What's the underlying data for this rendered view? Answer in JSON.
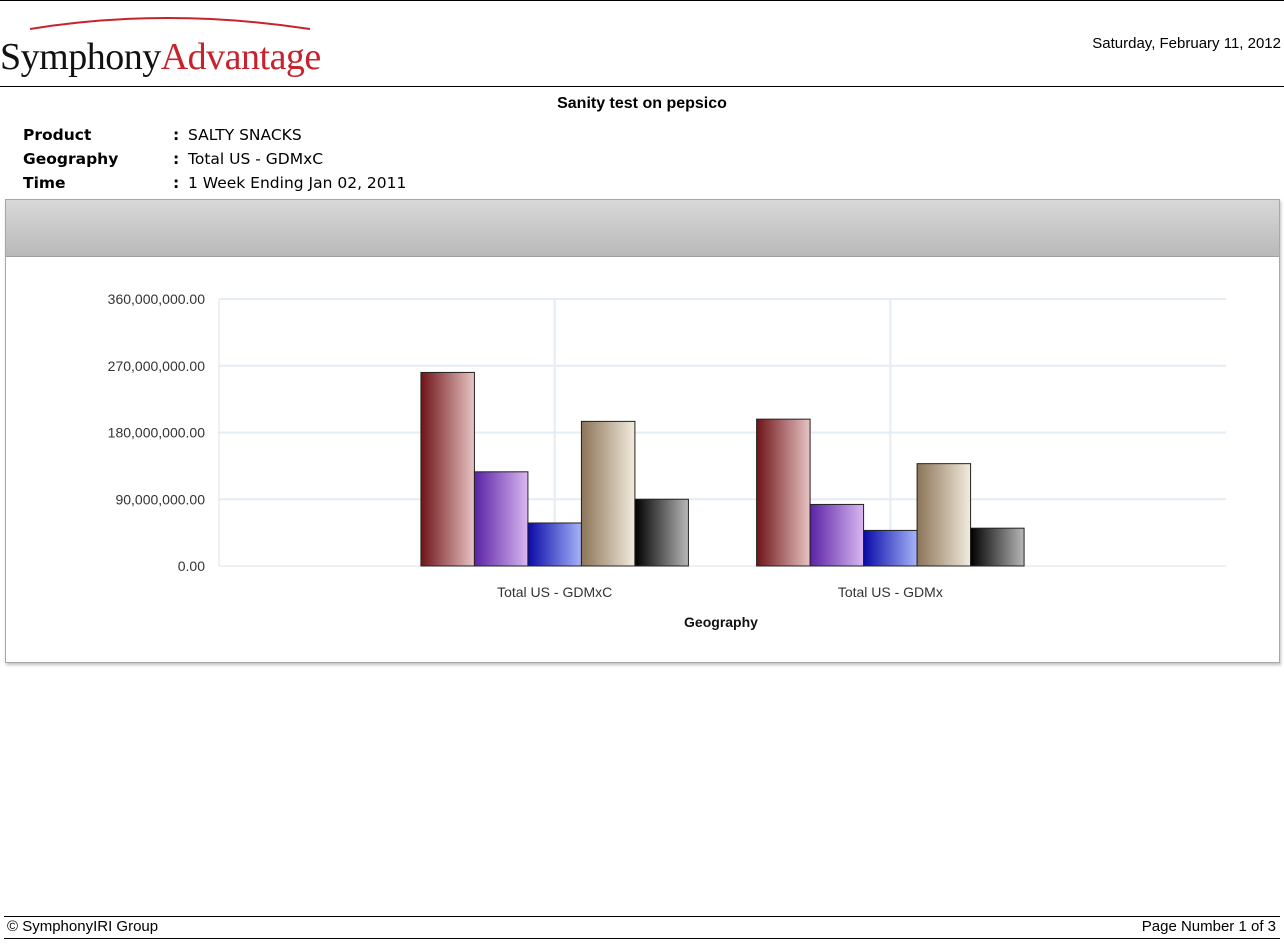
{
  "header": {
    "logo": {
      "part1": "Symphony",
      "part2": "Advantage",
      "arc_color": "#c8232c"
    },
    "date": "Saturday, February 11, 2012"
  },
  "report": {
    "title": "Sanity test on pepsico",
    "filters": [
      {
        "label": "Product",
        "value": "SALTY SNACKS"
      },
      {
        "label": "Geography",
        "value": "Total US - GDMxC"
      },
      {
        "label": "Time",
        "value": "1 Week Ending Jan 02, 2011"
      }
    ],
    "colon": ":"
  },
  "chart_data": {
    "type": "bar",
    "categories": [
      "Total US - GDMxC",
      "Total US - GDMx"
    ],
    "series": [
      {
        "values": [
          261000000,
          198000000
        ],
        "color_dark": "#6e1418",
        "color_light": "#e8c4c4"
      },
      {
        "values": [
          127000000,
          83000000
        ],
        "color_dark": "#5a22a6",
        "color_light": "#d9b8f0"
      },
      {
        "values": [
          58000000,
          48000000
        ],
        "color_dark": "#0a0aa8",
        "color_light": "#a6b4f8"
      },
      {
        "values": [
          195000000,
          138000000
        ],
        "color_dark": "#8c7458",
        "color_light": "#f2ebdd"
      },
      {
        "values": [
          90000000,
          51000000
        ],
        "color_dark": "#000000",
        "color_light": "#b8b8b8"
      }
    ],
    "ylim": [
      0,
      360000000
    ],
    "yticks": [
      "0.00",
      "90,000,000.00",
      "180,000,000.00",
      "270,000,000.00",
      "360,000,000.00"
    ],
    "xlabel": "Geography",
    "ylabel": "",
    "grid": true,
    "grid_color": "#e4ecf4"
  },
  "footer": {
    "copyright": "© SymphonyIRI Group",
    "page": "Page Number 1 of 3"
  }
}
